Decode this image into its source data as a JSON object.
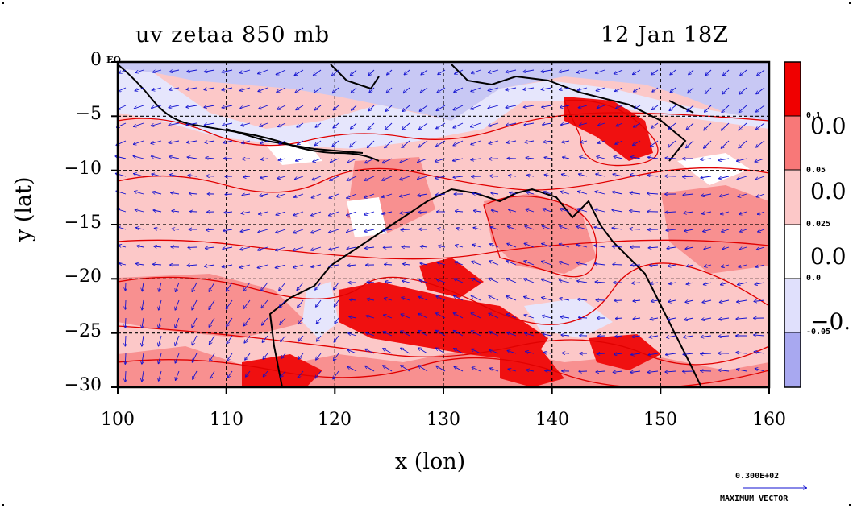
{
  "title": {
    "left": "uv zetaa 850 mb",
    "right": "12 Jan 18Z"
  },
  "axes": {
    "xlabel": "x (lon)",
    "ylabel": "y (lat)",
    "x_ticks": [
      "100",
      "110",
      "120",
      "130",
      "140",
      "150",
      "160"
    ],
    "y_ticks": [
      "0",
      "−5",
      "−10",
      "−15",
      "−20",
      "−25",
      "−30"
    ],
    "eq_label": "EQ"
  },
  "colorbar": {
    "small_labels": [
      "0.1",
      "0.05",
      "0.025",
      "0.0",
      "-0.05"
    ],
    "big_labels": [
      "0.0",
      "0.0",
      "0.0",
      "−0."
    ],
    "colors": [
      "#f00000",
      "#f87878",
      "#fcc8c8",
      "#ffffff",
      "#e0e0fc",
      "#a8a8f0"
    ]
  },
  "vector": {
    "max_value": "0.300E+02",
    "max_label": "MAXIMUM VECTOR"
  },
  "map_colors": {
    "ocean_blue": "#c8c8f4",
    "light_blue": "#e6e6fc",
    "white": "#ffffff",
    "pink_light": "#fcc8c8",
    "pink": "#f89090",
    "red": "#f01010",
    "coast": "#000000",
    "contour": "#e00000",
    "arrow": "#1010d0",
    "grid": "#000000"
  }
}
